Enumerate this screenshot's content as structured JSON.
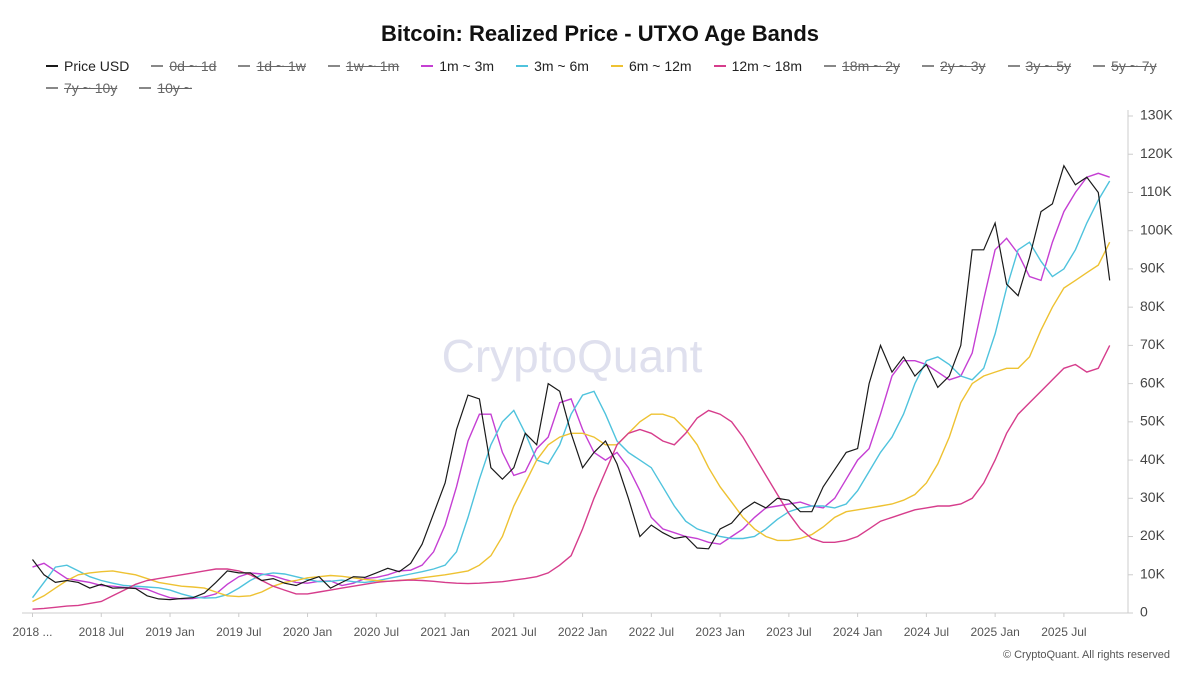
{
  "chart_data": {
    "type": "line",
    "title": "Bitcoin: Realized Price - UTXO Age Bands",
    "watermark": "CryptoQuant",
    "footer": "© CryptoQuant. All rights reserved",
    "x": [
      "2018-01",
      "2018-02",
      "2018-03",
      "2018-04",
      "2018-05",
      "2018-06",
      "2018-07",
      "2018-08",
      "2018-09",
      "2018-10",
      "2018-11",
      "2018-12",
      "2019-01",
      "2019-02",
      "2019-03",
      "2019-04",
      "2019-05",
      "2019-06",
      "2019-07",
      "2019-08",
      "2019-09",
      "2019-10",
      "2019-11",
      "2019-12",
      "2020-01",
      "2020-02",
      "2020-03",
      "2020-04",
      "2020-05",
      "2020-06",
      "2020-07",
      "2020-08",
      "2020-09",
      "2020-10",
      "2020-11",
      "2020-12",
      "2021-01",
      "2021-02",
      "2021-03",
      "2021-04",
      "2021-05",
      "2021-06",
      "2021-07",
      "2021-08",
      "2021-09",
      "2021-10",
      "2021-11",
      "2021-12",
      "2022-01",
      "2022-02",
      "2022-03",
      "2022-04",
      "2022-05",
      "2022-06",
      "2022-07",
      "2022-08",
      "2022-09",
      "2022-10",
      "2022-11",
      "2022-12",
      "2023-01",
      "2023-02",
      "2023-03",
      "2023-04",
      "2023-05",
      "2023-06",
      "2023-07",
      "2023-08",
      "2023-09",
      "2023-10",
      "2023-11",
      "2023-12",
      "2024-01",
      "2024-02",
      "2024-03",
      "2024-04",
      "2024-05",
      "2024-06",
      "2024-07",
      "2024-08",
      "2024-09",
      "2024-10",
      "2024-11",
      "2024-12",
      "2025-01",
      "2025-02",
      "2025-03",
      "2025-04",
      "2025-05",
      "2025-06",
      "2025-07",
      "2025-08",
      "2025-09",
      "2025-10",
      "2025-11"
    ],
    "xticks": [
      {
        "value": "2018-01",
        "label": "2018 ..."
      },
      {
        "value": "2018-07",
        "label": "2018 Jul"
      },
      {
        "value": "2019-01",
        "label": "2019 Jan"
      },
      {
        "value": "2019-07",
        "label": "2019 Jul"
      },
      {
        "value": "2020-01",
        "label": "2020 Jan"
      },
      {
        "value": "2020-07",
        "label": "2020 Jul"
      },
      {
        "value": "2021-01",
        "label": "2021 Jan"
      },
      {
        "value": "2021-07",
        "label": "2021 Jul"
      },
      {
        "value": "2022-01",
        "label": "2022 Jan"
      },
      {
        "value": "2022-07",
        "label": "2022 Jul"
      },
      {
        "value": "2023-01",
        "label": "2023 Jan"
      },
      {
        "value": "2023-07",
        "label": "2023 Jul"
      },
      {
        "value": "2024-01",
        "label": "2024 Jan"
      },
      {
        "value": "2024-07",
        "label": "2024 Jul"
      },
      {
        "value": "2025-01",
        "label": "2025 Jan"
      },
      {
        "value": "2025-07",
        "label": "2025 Jul"
      }
    ],
    "ylim": [
      0,
      130000
    ],
    "yticks": [
      0,
      {
        "value": 10000,
        "label": "10K"
      },
      {
        "value": 20000,
        "label": "20K"
      },
      {
        "value": 30000,
        "label": "30K"
      },
      {
        "value": 40000,
        "label": "40K"
      },
      {
        "value": 50000,
        "label": "50K"
      },
      {
        "value": 60000,
        "label": "60K"
      },
      {
        "value": 70000,
        "label": "70K"
      },
      {
        "value": 80000,
        "label": "80K"
      },
      {
        "value": 90000,
        "label": "90K"
      },
      {
        "value": 100000,
        "label": "100K"
      },
      {
        "value": 110000,
        "label": "110K"
      },
      {
        "value": 120000,
        "label": "120K"
      },
      {
        "value": 130000,
        "label": "130K"
      }
    ],
    "grid": false,
    "series": [
      {
        "name": "Price USD",
        "color": "#1a1a1a",
        "values": [
          14000,
          10000,
          8000,
          8500,
          8000,
          6500,
          7500,
          6500,
          6600,
          6400,
          4500,
          3700,
          3500,
          3800,
          4000,
          5200,
          8000,
          11000,
          10500,
          10500,
          8500,
          9000,
          7800,
          7200,
          8500,
          9500,
          6500,
          8000,
          9500,
          9300,
          10500,
          11700,
          10800,
          13000,
          18000,
          26000,
          34000,
          48000,
          57000,
          56000,
          38000,
          35000,
          38000,
          47000,
          44000,
          60000,
          58000,
          47000,
          38000,
          42000,
          45000,
          39000,
          30000,
          20000,
          23000,
          21000,
          19500,
          20000,
          17000,
          16800,
          22000,
          23500,
          27000,
          29000,
          27500,
          30000,
          29500,
          26500,
          26500,
          33000,
          37500,
          42000,
          43000,
          60000,
          70000,
          63000,
          67000,
          62000,
          65000,
          59000,
          62000,
          70000,
          95000,
          95000,
          102000,
          86000,
          83000,
          93000,
          105000,
          107000,
          117000,
          112000,
          114000,
          110000,
          87000
        ]
      },
      {
        "name": "0d ~ 1d",
        "color": "#888888",
        "hidden": true
      },
      {
        "name": "1d ~ 1w",
        "color": "#888888",
        "hidden": true
      },
      {
        "name": "1w ~ 1m",
        "color": "#888888",
        "hidden": true
      },
      {
        "name": "1m ~ 3m",
        "color": "#c53fd3",
        "values": [
          12000,
          13000,
          11000,
          9000,
          8500,
          8000,
          7200,
          7000,
          6700,
          6500,
          6200,
          5000,
          4000,
          3700,
          3800,
          4200,
          5000,
          7500,
          9500,
          10500,
          10200,
          9700,
          8800,
          8000,
          7800,
          8300,
          8400,
          7200,
          7800,
          9000,
          9300,
          10000,
          11000,
          11200,
          12500,
          16000,
          23000,
          33000,
          45000,
          52000,
          52000,
          42000,
          36000,
          37000,
          43000,
          46000,
          55000,
          56000,
          48000,
          42000,
          40000,
          42000,
          38000,
          32000,
          25000,
          22000,
          21000,
          20000,
          19500,
          18500,
          18000,
          20000,
          22000,
          25000,
          27500,
          28000,
          28500,
          29000,
          28000,
          27500,
          30000,
          35000,
          40000,
          43000,
          52000,
          62000,
          66000,
          66000,
          65000,
          63000,
          61000,
          62000,
          68000,
          82000,
          95000,
          98000,
          94000,
          88000,
          87000,
          97000,
          105000,
          110000,
          114000,
          115000,
          114000
        ]
      },
      {
        "name": "3m ~ 6m",
        "color": "#4fc3dd",
        "values": [
          4000,
          8000,
          12000,
          12500,
          11000,
          9500,
          8500,
          7800,
          7200,
          7000,
          6800,
          6600,
          6000,
          5000,
          4200,
          3900,
          4000,
          4800,
          6500,
          8500,
          10000,
          10500,
          10200,
          9500,
          8800,
          8200,
          8300,
          8600,
          8200,
          8000,
          8400,
          9000,
          9600,
          10200,
          10800,
          11500,
          12500,
          16000,
          25000,
          35000,
          44000,
          50000,
          53000,
          47000,
          40000,
          39000,
          44000,
          52000,
          57000,
          58000,
          52000,
          45000,
          42000,
          40000,
          38000,
          33000,
          28000,
          24000,
          22000,
          21000,
          20000,
          19500,
          19500,
          20000,
          22000,
          24500,
          26500,
          27500,
          28000,
          28000,
          27500,
          28500,
          32000,
          37000,
          42000,
          46000,
          52000,
          60000,
          66000,
          67000,
          65000,
          62000,
          61000,
          64000,
          73000,
          85000,
          95000,
          97000,
          92000,
          88000,
          90000,
          95000,
          102000,
          108000,
          113000
        ]
      },
      {
        "name": "6m ~ 12m",
        "color": "#eec232",
        "values": [
          3000,
          4500,
          6500,
          8500,
          10000,
          10500,
          10800,
          11000,
          10500,
          10000,
          9000,
          8000,
          7500,
          7000,
          6800,
          6500,
          5500,
          4500,
          4300,
          4500,
          5500,
          7000,
          8000,
          8500,
          9200,
          9500,
          9800,
          9600,
          9200,
          8800,
          8500,
          8300,
          8500,
          8800,
          9200,
          9600,
          10000,
          10500,
          11000,
          12500,
          15000,
          20000,
          28000,
          34000,
          40000,
          44000,
          46000,
          47000,
          47000,
          46000,
          44000,
          44000,
          47000,
          50000,
          52000,
          52000,
          51000,
          48000,
          44000,
          38000,
          33000,
          29000,
          25000,
          22000,
          20000,
          19000,
          19000,
          19500,
          20500,
          22500,
          25000,
          26500,
          27000,
          27500,
          28000,
          28500,
          29500,
          31000,
          34000,
          39000,
          46000,
          55000,
          60000,
          62000,
          63000,
          64000,
          64000,
          67000,
          74000,
          80000,
          85000,
          87000,
          89000,
          91000,
          97000
        ]
      },
      {
        "name": "12m ~ 18m",
        "color": "#d63d8c",
        "values": [
          1000,
          1200,
          1500,
          1800,
          2000,
          2500,
          3000,
          4500,
          6000,
          7500,
          8500,
          9000,
          9500,
          10000,
          10500,
          11000,
          11500,
          11500,
          11000,
          10000,
          8500,
          7000,
          6000,
          5000,
          5000,
          5500,
          6000,
          6500,
          7000,
          7500,
          8000,
          8300,
          8500,
          8600,
          8500,
          8300,
          8000,
          7800,
          7700,
          7800,
          8000,
          8200,
          8600,
          9000,
          9500,
          10500,
          12500,
          15000,
          22000,
          30000,
          37000,
          44000,
          47000,
          48000,
          47000,
          45000,
          44000,
          47000,
          51000,
          53000,
          52000,
          50000,
          46000,
          41000,
          36000,
          31000,
          26000,
          22000,
          19500,
          18500,
          18500,
          19000,
          20000,
          22000,
          24000,
          25000,
          26000,
          27000,
          27500,
          28000,
          28000,
          28500,
          30000,
          34000,
          40000,
          47000,
          52000,
          55000,
          58000,
          61000,
          64000,
          65000,
          63000,
          64000,
          70000
        ]
      },
      {
        "name": "18m ~ 2y",
        "color": "#888888",
        "hidden": true
      },
      {
        "name": "2y ~ 3y",
        "color": "#888888",
        "hidden": true
      },
      {
        "name": "3y ~ 5y",
        "color": "#888888",
        "hidden": true
      },
      {
        "name": "5y ~ 7y",
        "color": "#888888",
        "hidden": true
      },
      {
        "name": "7y ~ 10y",
        "color": "#888888",
        "hidden": true
      },
      {
        "name": "10y ~",
        "color": "#888888",
        "hidden": true
      }
    ]
  }
}
